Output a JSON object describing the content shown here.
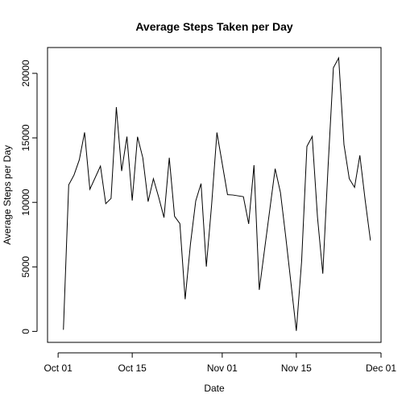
{
  "chart_data": {
    "type": "line",
    "title": "Average Steps Taken per Day",
    "xlabel": "Date",
    "ylabel": "Average Steps per Day",
    "x_ticks": [
      "2012-10-01",
      "2012-10-15",
      "2012-11-01",
      "2012-11-15",
      "2012-12-01"
    ],
    "x_tick_labels": [
      "Oct 01",
      "Oct 15",
      "Nov 01",
      "Nov 15",
      "Dec 01"
    ],
    "y_ticks": [
      0,
      5000,
      10000,
      15000,
      20000
    ],
    "y_tick_labels": [
      "0",
      "5000",
      "10000",
      "15000",
      "20000"
    ],
    "xlim": [
      "2012-09-29",
      "2012-12-01"
    ],
    "ylim": [
      -850,
      22000
    ],
    "grid": false,
    "legend": "none",
    "line_color": "#000000",
    "series": [
      {
        "x": [
          "2012-10-02",
          "2012-10-03",
          "2012-10-04",
          "2012-10-05",
          "2012-10-06",
          "2012-10-07",
          "2012-10-09",
          "2012-10-10",
          "2012-10-11",
          "2012-10-12",
          "2012-10-13",
          "2012-10-14",
          "2012-10-15",
          "2012-10-16",
          "2012-10-17",
          "2012-10-18",
          "2012-10-19",
          "2012-10-20",
          "2012-10-21",
          "2012-10-22",
          "2012-10-23",
          "2012-10-24",
          "2012-10-25",
          "2012-10-26",
          "2012-10-27",
          "2012-10-28",
          "2012-10-29",
          "2012-10-30",
          "2012-10-31",
          "2012-11-02",
          "2012-11-03",
          "2012-11-05",
          "2012-11-06",
          "2012-11-07",
          "2012-11-08",
          "2012-11-11",
          "2012-11-12",
          "2012-11-13",
          "2012-11-15",
          "2012-11-16",
          "2012-11-17",
          "2012-11-18",
          "2012-11-19",
          "2012-11-20",
          "2012-11-21",
          "2012-11-22",
          "2012-11-23",
          "2012-11-24",
          "2012-11-25",
          "2012-11-26",
          "2012-11-27",
          "2012-11-28",
          "2012-11-29"
        ],
        "values": [
          126,
          11352,
          12116,
          13294,
          15420,
          11015,
          12811,
          9900,
          10304,
          17382,
          12426,
          15098,
          10139,
          15084,
          13452,
          10056,
          11829,
          10395,
          8821,
          13460,
          8918,
          8355,
          2492,
          6778,
          10119,
          11458,
          5018,
          9819,
          15414,
          10600,
          10571,
          10439,
          8334,
          12883,
          3219,
          12608,
          10765,
          7336,
          41,
          5441,
          14339,
          15110,
          8841,
          4472,
          12787,
          20427,
          21194,
          14478,
          11834,
          11162,
          13646,
          10183,
          7047
        ]
      }
    ]
  }
}
